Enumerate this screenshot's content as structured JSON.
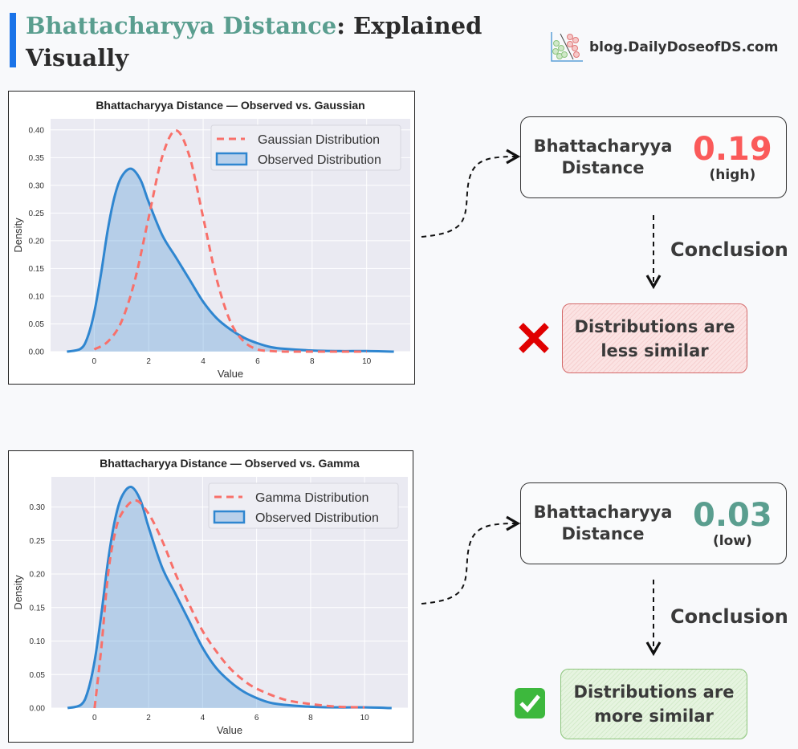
{
  "header": {
    "title_highlight": "Bhattacharyya Distance",
    "title_rest": ": Explained",
    "title_line2": "Visually",
    "accent_color": "#1a73e8",
    "highlight_color": "#5a9e8f",
    "logo_text": "blog.DailyDoseofDS.com"
  },
  "chart_data": [
    {
      "type": "line",
      "title": "Bhattacharyya Distance — Observed  vs. Gaussian",
      "xlabel": "Value",
      "ylabel": "Density",
      "xlim": [
        -1.6,
        11.6
      ],
      "ylim": [
        0,
        0.42
      ],
      "xticks": [
        0,
        2,
        4,
        6,
        8,
        10
      ],
      "yticks": [
        0.0,
        0.05,
        0.1,
        0.15,
        0.2,
        0.25,
        0.3,
        0.35,
        0.4
      ],
      "grid": true,
      "legend_placement": "top-right",
      "series": [
        {
          "name": "Gaussian Distribution",
          "style": "dashed",
          "color": "#f8706a",
          "x": [
            0,
            0.5,
            1,
            1.5,
            2,
            2.5,
            3,
            3.5,
            4,
            4.5,
            5,
            5.5,
            6,
            6.5,
            7,
            8,
            9,
            10
          ],
          "y": [
            0.004,
            0.018,
            0.054,
            0.13,
            0.242,
            0.352,
            0.399,
            0.352,
            0.242,
            0.13,
            0.054,
            0.018,
            0.004,
            0.001,
            0,
            0,
            0,
            0
          ]
        },
        {
          "name": "Observed Distribution",
          "style": "filled",
          "color": "#2f86d0",
          "x": [
            -1,
            -0.5,
            -0.25,
            0,
            0.25,
            0.5,
            0.75,
            1,
            1.35,
            1.7,
            2,
            2.5,
            3,
            3.5,
            4,
            4.5,
            5,
            5.5,
            6,
            6.5,
            7,
            8,
            9,
            10,
            11
          ],
          "y": [
            0,
            0.005,
            0.025,
            0.07,
            0.14,
            0.22,
            0.28,
            0.315,
            0.33,
            0.31,
            0.27,
            0.21,
            0.17,
            0.13,
            0.09,
            0.06,
            0.04,
            0.025,
            0.015,
            0.008,
            0.005,
            0.002,
            0.001,
            0.001,
            0
          ]
        }
      ]
    },
    {
      "type": "line",
      "title": "Bhattacharyya Distance — Observed  vs. Gamma",
      "xlabel": "Value",
      "ylabel": "Density",
      "xlim": [
        -1.6,
        11.6
      ],
      "ylim": [
        0,
        0.345
      ],
      "xticks": [
        0,
        2,
        4,
        6,
        8,
        10
      ],
      "yticks": [
        0.0,
        0.05,
        0.1,
        0.15,
        0.2,
        0.25,
        0.3
      ],
      "grid": true,
      "legend_placement": "top-right",
      "series": [
        {
          "name": "Gamma Distribution",
          "style": "dashed",
          "color": "#f8706a",
          "x": [
            0,
            0.25,
            0.5,
            0.75,
            1,
            1.5,
            2,
            2.5,
            3,
            3.5,
            4,
            4.5,
            5,
            5.5,
            6,
            7,
            8,
            9,
            10
          ],
          "y": [
            0,
            0.09,
            0.2,
            0.26,
            0.29,
            0.31,
            0.29,
            0.25,
            0.2,
            0.155,
            0.115,
            0.085,
            0.06,
            0.042,
            0.029,
            0.013,
            0.006,
            0.002,
            0.001
          ]
        },
        {
          "name": "Observed Distribution",
          "style": "filled",
          "color": "#2f86d0",
          "x": [
            -1,
            -0.5,
            -0.25,
            0,
            0.25,
            0.5,
            0.75,
            1,
            1.35,
            1.7,
            2,
            2.5,
            3,
            3.5,
            4,
            4.5,
            5,
            5.5,
            6,
            6.5,
            7,
            8,
            9,
            10,
            11
          ],
          "y": [
            0,
            0.005,
            0.025,
            0.07,
            0.14,
            0.22,
            0.28,
            0.315,
            0.33,
            0.31,
            0.27,
            0.21,
            0.17,
            0.13,
            0.09,
            0.06,
            0.04,
            0.025,
            0.015,
            0.008,
            0.005,
            0.002,
            0.001,
            0.001,
            0
          ]
        }
      ]
    }
  ],
  "panels": [
    {
      "label": "Bhattacharyya Distance",
      "value": "0.19",
      "qualifier": "(high)",
      "value_color": "#fa5a5a",
      "conclusion_label": "Conclusion",
      "result": "Distributions are less similar",
      "result_icon": "cross-mark-icon"
    },
    {
      "label": "Bhattacharyya Distance",
      "value": "0.03",
      "qualifier": "(low)",
      "value_color": "#5a9e8f",
      "conclusion_label": "Conclusion",
      "result": "Distributions are more similar",
      "result_icon": "check-mark-icon"
    }
  ]
}
